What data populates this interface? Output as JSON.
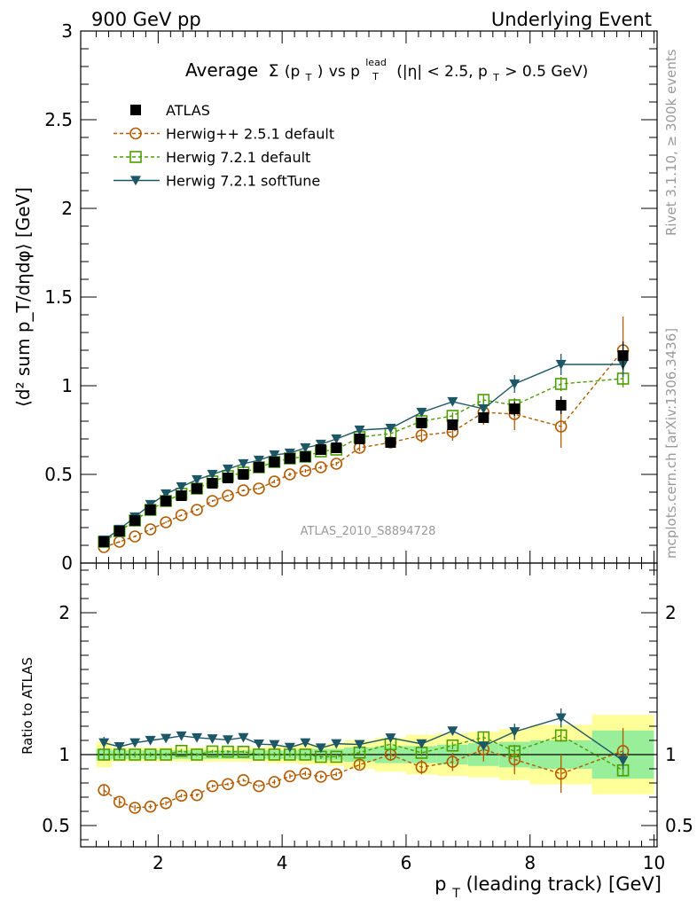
{
  "header": {
    "left": "900 GeV pp",
    "right": "Underlying Event"
  },
  "side_labels": {
    "rivet": "Rivet 3.1.10, ≥ 300k events",
    "mcplots": "mcplots.cern.ch [arXiv:1306.3436]"
  },
  "analysis_id": "ATLAS_2010_S8894728",
  "title": {
    "prefix": "Average",
    "sigma": "Σ",
    "arg": "(p",
    "arg_sub": "T",
    "arg_close": ")",
    "vs": " vs p",
    "lead_sup": "lead",
    "lead_sub": "T",
    "cuts1": " (|η| < 2.5, p",
    "cuts_sub": "T",
    "cuts2": " > 0.5 GeV)"
  },
  "axes": {
    "ylabel_main": "⟨d² sum p_T/dηdφ⟩ [GeV]",
    "ylabel_ratio": "Ratio to ATLAS",
    "xlabel_p": "p",
    "xlabel_sub": "T",
    "xlabel_rest": " (leading track) [GeV]"
  },
  "legend": [
    {
      "label": "ATLAS",
      "color": "#000000",
      "marker": "filled-square"
    },
    {
      "label": "Herwig++ 2.5.1 default",
      "color": "#b25b00",
      "marker": "open-circle"
    },
    {
      "label": "Herwig 7.2.1 default",
      "color": "#4d9d00",
      "marker": "open-square"
    },
    {
      "label": "Herwig 7.2.1 softTune",
      "color": "#1d5766",
      "marker": "filled-triangle"
    }
  ],
  "chart_data": {
    "type": "scatter",
    "x": [
      1.125,
      1.375,
      1.625,
      1.875,
      2.125,
      2.375,
      2.625,
      2.875,
      3.125,
      3.375,
      3.625,
      3.875,
      4.125,
      4.375,
      4.625,
      4.875,
      5.25,
      5.75,
      6.25,
      6.75,
      7.25,
      7.75,
      8.5,
      9.5
    ],
    "xlim": [
      0.75,
      10.05
    ],
    "ylim_main": [
      0,
      3
    ],
    "ylim_ratio": [
      0.35,
      2.35
    ],
    "yticks_main": [
      "0",
      "0.5",
      "1",
      "1.5",
      "2",
      "2.5",
      "3"
    ],
    "yticks_ratio": [
      "0.5",
      "1",
      "2"
    ],
    "xticks": [
      "2",
      "4",
      "6",
      "8",
      "10"
    ],
    "series": [
      {
        "name": "ATLAS",
        "color": "#000000",
        "values": [
          0.12,
          0.18,
          0.24,
          0.3,
          0.35,
          0.38,
          0.42,
          0.45,
          0.48,
          0.5,
          0.54,
          0.57,
          0.59,
          0.6,
          0.64,
          0.65,
          0.7,
          0.68,
          0.79,
          0.78,
          0.82,
          0.87,
          0.89,
          1.17
        ],
        "errors": [
          0.01,
          0.01,
          0.01,
          0.01,
          0.01,
          0.01,
          0.01,
          0.01,
          0.01,
          0.01,
          0.01,
          0.01,
          0.01,
          0.01,
          0.01,
          0.02,
          0.02,
          0.02,
          0.02,
          0.03,
          0.03,
          0.04,
          0.05,
          0.08
        ]
      },
      {
        "name": "Herwig++ 2.5.1 default",
        "color": "#b25b00",
        "values": [
          0.09,
          0.12,
          0.15,
          0.19,
          0.23,
          0.27,
          0.3,
          0.35,
          0.38,
          0.41,
          0.42,
          0.46,
          0.5,
          0.52,
          0.54,
          0.56,
          0.65,
          0.68,
          0.72,
          0.74,
          0.85,
          0.84,
          0.77,
          1.2
        ],
        "errors": [
          0.005,
          0.005,
          0.005,
          0.005,
          0.005,
          0.005,
          0.005,
          0.005,
          0.005,
          0.005,
          0.005,
          0.01,
          0.01,
          0.01,
          0.01,
          0.01,
          0.02,
          0.03,
          0.04,
          0.05,
          0.07,
          0.09,
          0.12,
          0.19
        ]
      },
      {
        "name": "Herwig 7.2.1 default",
        "color": "#4d9d00",
        "values": [
          0.12,
          0.18,
          0.24,
          0.3,
          0.35,
          0.39,
          0.42,
          0.46,
          0.49,
          0.51,
          0.54,
          0.57,
          0.59,
          0.6,
          0.63,
          0.64,
          0.71,
          0.73,
          0.8,
          0.83,
          0.92,
          0.89,
          1.01,
          1.04
        ],
        "errors": [
          0.005,
          0.005,
          0.005,
          0.005,
          0.005,
          0.005,
          0.005,
          0.005,
          0.005,
          0.005,
          0.005,
          0.01,
          0.01,
          0.01,
          0.01,
          0.01,
          0.01,
          0.02,
          0.02,
          0.02,
          0.03,
          0.03,
          0.04,
          0.05
        ]
      },
      {
        "name": "Herwig 7.2.1 softTune",
        "color": "#1d5766",
        "values": [
          0.13,
          0.19,
          0.26,
          0.33,
          0.39,
          0.43,
          0.47,
          0.5,
          0.53,
          0.56,
          0.58,
          0.61,
          0.62,
          0.65,
          0.67,
          0.7,
          0.75,
          0.76,
          0.85,
          0.91,
          0.87,
          1.01,
          1.12,
          1.12
        ],
        "errors": [
          0.005,
          0.005,
          0.005,
          0.005,
          0.005,
          0.005,
          0.005,
          0.005,
          0.005,
          0.005,
          0.005,
          0.01,
          0.01,
          0.01,
          0.01,
          0.01,
          0.01,
          0.01,
          0.02,
          0.02,
          0.02,
          0.05,
          0.06,
          0.07
        ]
      }
    ],
    "ratio_band": {
      "edges": [
        1.0,
        1.25,
        1.5,
        1.75,
        2.0,
        2.25,
        2.5,
        2.75,
        3.0,
        3.25,
        3.5,
        3.75,
        4.0,
        4.25,
        4.5,
        4.75,
        5.0,
        5.5,
        6.0,
        6.5,
        7.0,
        7.5,
        8.0,
        9.0,
        10.0
      ],
      "inner": [
        0.04,
        0.03,
        0.03,
        0.03,
        0.03,
        0.03,
        0.03,
        0.03,
        0.03,
        0.03,
        0.03,
        0.03,
        0.03,
        0.04,
        0.04,
        0.04,
        0.05,
        0.06,
        0.06,
        0.07,
        0.08,
        0.09,
        0.1,
        0.17
      ],
      "outer": [
        0.09,
        0.05,
        0.05,
        0.05,
        0.05,
        0.05,
        0.05,
        0.05,
        0.05,
        0.05,
        0.05,
        0.06,
        0.06,
        0.07,
        0.07,
        0.08,
        0.1,
        0.12,
        0.14,
        0.15,
        0.16,
        0.18,
        0.21,
        0.28
      ]
    }
  }
}
